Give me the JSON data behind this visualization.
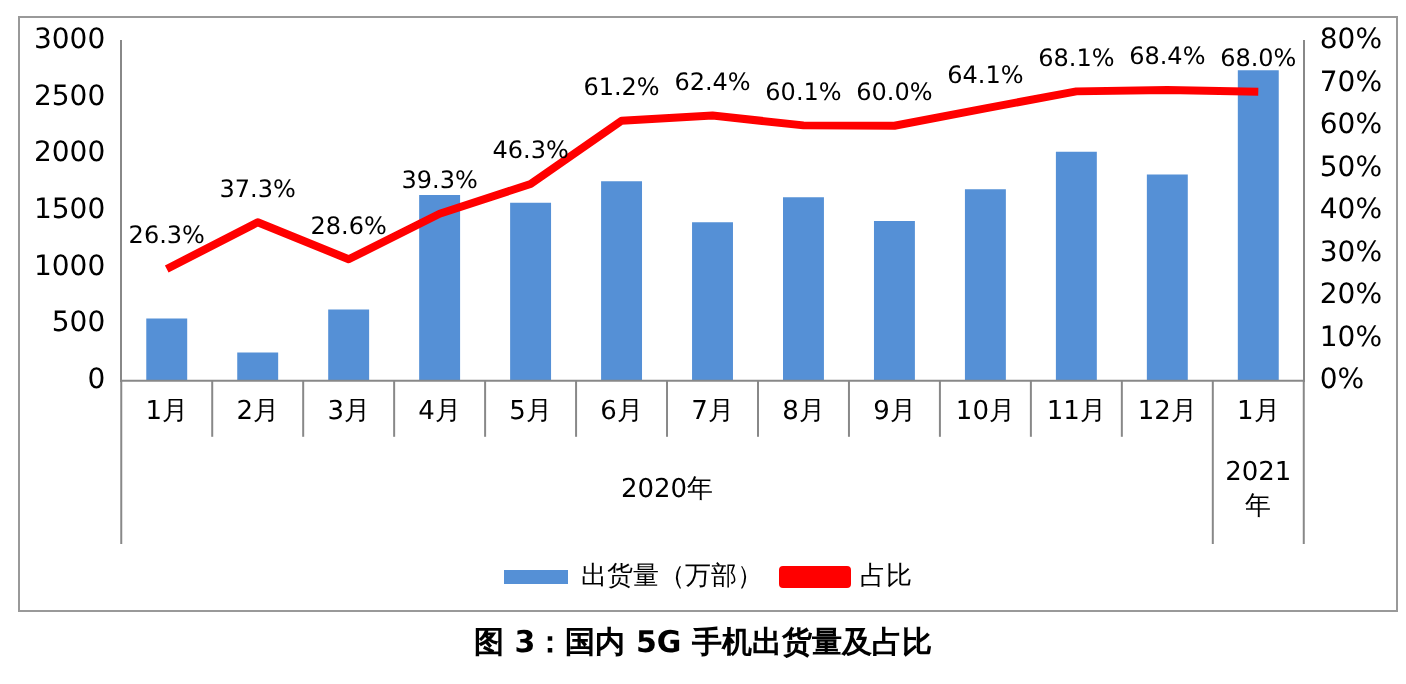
{
  "chart_data": {
    "type": "bar",
    "title": "图 3：国内 5G 手机出货量及占比",
    "categories": [
      "1月",
      "2月",
      "3月",
      "4月",
      "5月",
      "6月",
      "7月",
      "8月",
      "9月",
      "10月",
      "11月",
      "12月",
      "1月"
    ],
    "series": [
      {
        "name": "出货量（万部）",
        "color": "#5590d6",
        "values": [
          550,
          250,
          630,
          1640,
          1570,
          1760,
          1400,
          1620,
          1410,
          1690,
          2020,
          1820,
          2740
        ]
      },
      {
        "name": "占比",
        "type": "line",
        "axis": "y2",
        "color": "#ff0000",
        "values": [
          26.3,
          37.3,
          28.6,
          39.3,
          46.3,
          61.2,
          62.4,
          60.1,
          60.0,
          64.1,
          68.1,
          68.4,
          68.0
        ],
        "value_labels": [
          "26.3%",
          "37.3%",
          "28.6%",
          "39.3%",
          "46.3%",
          "61.2%",
          "62.4%",
          "60.1%",
          "60.0%",
          "64.1%",
          "68.1%",
          "68.4%",
          "68.0%"
        ]
      }
    ],
    "ylim": [
      0,
      3000
    ],
    "yticks": [
      0,
      500,
      1000,
      1500,
      2000,
      2500,
      3000
    ],
    "y2lim": [
      0,
      80
    ],
    "y2ticks": [
      {
        "value": 0,
        "label": "0%"
      },
      {
        "value": 10,
        "label": "10%"
      },
      {
        "value": 20,
        "label": "20%"
      },
      {
        "value": 30,
        "label": "30%"
      },
      {
        "value": 40,
        "label": "40%"
      },
      {
        "value": 50,
        "label": "50%"
      },
      {
        "value": 60,
        "label": "60%"
      },
      {
        "value": 70,
        "label": "70%"
      },
      {
        "value": 80,
        "label": "80%"
      }
    ],
    "annotations": [
      "2020年",
      "2021年"
    ],
    "grid": false,
    "legend": "bottom",
    "marker": "none",
    "line_style": "solid"
  }
}
